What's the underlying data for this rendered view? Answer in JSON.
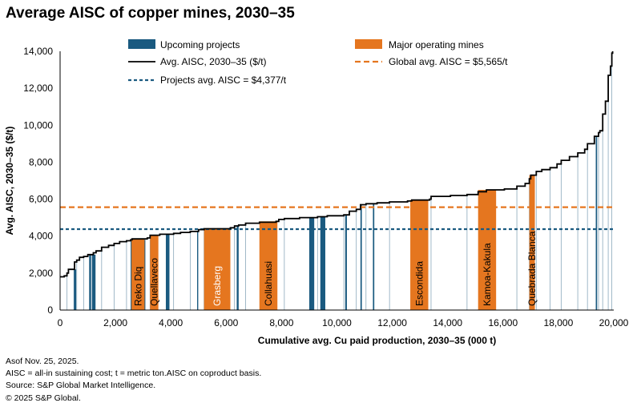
{
  "chart_data": {
    "type": "area",
    "title": "Average AISC of copper mines, 2030–35",
    "xlabel": "Cumulative avg. Cu paid production, 2030–35 (000 t)",
    "ylabel": "Avg. AISC, 2030–35 ($/t)",
    "xlim": [
      0,
      20000
    ],
    "ylim": [
      0,
      14000
    ],
    "x_ticks": [
      "0",
      "2,000",
      "4,000",
      "6,000",
      "8,000",
      "10,000",
      "12,000",
      "14,000",
      "16,000",
      "18,000",
      "20,000"
    ],
    "y_ticks": [
      "0",
      "2,000",
      "4,000",
      "6,000",
      "8,000",
      "10,000",
      "12,000",
      "14,000"
    ],
    "legend": {
      "upcoming": "Upcoming projects",
      "major": "Major operating mines",
      "curve": "Avg. AISC, 2030–35 ($/t)",
      "global_avg": "Global avg. AISC = $5,565/t",
      "projects_avg": "Projects avg. AISC = $4,377/t"
    },
    "global_avg_aisc": 5565,
    "projects_avg_aisc": 4377,
    "cost_curve": [
      [
        0,
        1800
      ],
      [
        150,
        1850
      ],
      [
        250,
        2000
      ],
      [
        300,
        2200
      ],
      [
        500,
        2200
      ],
      [
        520,
        2600
      ],
      [
        600,
        2700
      ],
      [
        700,
        2850
      ],
      [
        850,
        2900
      ],
      [
        1000,
        3000
      ],
      [
        1200,
        3100
      ],
      [
        1300,
        3200
      ],
      [
        1500,
        3400
      ],
      [
        1750,
        3500
      ],
      [
        1950,
        3600
      ],
      [
        2150,
        3700
      ],
      [
        2400,
        3750
      ],
      [
        2550,
        3800
      ],
      [
        2600,
        3850
      ],
      [
        3150,
        3900
      ],
      [
        3250,
        4050
      ],
      [
        3600,
        4100
      ],
      [
        4100,
        4150
      ],
      [
        4350,
        4200
      ],
      [
        4700,
        4250
      ],
      [
        5000,
        4350
      ],
      [
        5200,
        4400
      ],
      [
        6150,
        4450
      ],
      [
        6300,
        4550
      ],
      [
        6450,
        4600
      ],
      [
        6700,
        4700
      ],
      [
        7200,
        4750
      ],
      [
        7800,
        4800
      ],
      [
        7900,
        4900
      ],
      [
        8100,
        4950
      ],
      [
        8650,
        5000
      ],
      [
        9300,
        5050
      ],
      [
        9650,
        5100
      ],
      [
        10250,
        5150
      ],
      [
        10450,
        5350
      ],
      [
        10700,
        5450
      ],
      [
        10850,
        5700
      ],
      [
        11050,
        5750
      ],
      [
        11450,
        5800
      ],
      [
        11900,
        5850
      ],
      [
        12550,
        5900
      ],
      [
        12700,
        5950
      ],
      [
        13350,
        6000
      ],
      [
        13400,
        6150
      ],
      [
        14100,
        6200
      ],
      [
        14700,
        6250
      ],
      [
        15100,
        6400
      ],
      [
        15400,
        6500
      ],
      [
        16050,
        6550
      ],
      [
        16500,
        6700
      ],
      [
        16800,
        6850
      ],
      [
        16950,
        7100
      ],
      [
        17000,
        7300
      ],
      [
        17200,
        7500
      ],
      [
        17400,
        7600
      ],
      [
        17700,
        7700
      ],
      [
        17950,
        7900
      ],
      [
        18100,
        8100
      ],
      [
        18400,
        8300
      ],
      [
        18700,
        8500
      ],
      [
        18950,
        8700
      ],
      [
        19050,
        9000
      ],
      [
        19300,
        9400
      ],
      [
        19450,
        9600
      ],
      [
        19500,
        9700
      ],
      [
        19600,
        10600
      ],
      [
        19700,
        11300
      ],
      [
        19800,
        12700
      ],
      [
        19880,
        13200
      ],
      [
        19930,
        13900
      ],
      [
        19960,
        14000
      ]
    ],
    "project_bars": [
      [
        500,
        580
      ],
      [
        1050,
        1120
      ],
      [
        1150,
        1280
      ],
      [
        2550,
        3080
      ],
      [
        3820,
        3950
      ],
      [
        4950,
        4990
      ],
      [
        6380,
        6450
      ],
      [
        9000,
        9180
      ],
      [
        9400,
        9580
      ],
      [
        10300,
        10360
      ],
      [
        10850,
        10900
      ],
      [
        11300,
        11350
      ],
      [
        13200,
        13260
      ],
      [
        19350,
        19400
      ]
    ],
    "major_mines": [
      {
        "name": "Reko Diq",
        "x0": 2580,
        "x1": 3050,
        "label_color": "#000000"
      },
      {
        "name": "Quellaveco",
        "x0": 3250,
        "x1": 3550,
        "label_color": "#000000"
      },
      {
        "name": "Grasberg",
        "x0": 5200,
        "x1": 6150,
        "label_color": "#ffffff"
      },
      {
        "name": "Collahuasi",
        "x0": 7200,
        "x1": 7850,
        "label_color": "#000000"
      },
      {
        "name": "Escondida",
        "x0": 12650,
        "x1": 13300,
        "label_color": "#000000"
      },
      {
        "name": "Kamoa-Kakula",
        "x0": 15100,
        "x1": 15750,
        "label_color": "#000000"
      },
      {
        "name": "Quebrada Blanca",
        "x0": 16950,
        "x1": 17150,
        "label_color": "#000000"
      }
    ],
    "colors": {
      "upcoming": "#1a5a80",
      "major": "#e5761f",
      "curve": "#000000",
      "global_avg": "#e5761f",
      "projects_avg": "#1a5a80",
      "divider": "#8aa8bb"
    }
  },
  "notes": [
    "Asof Nov. 25, 2025.",
    "AISC = all-in sustaining cost; t = metric ton.AISC on coproduct basis.",
    "Source: S&P Global Market Intelligence.",
    "© 2025 S&P Global."
  ]
}
